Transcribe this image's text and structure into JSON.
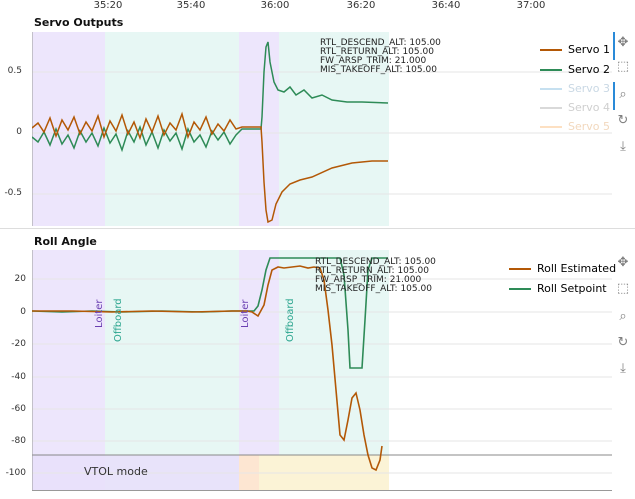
{
  "top_axis": {
    "ticks": [
      "35:20",
      "35:40",
      "36:00",
      "36:20",
      "36:40",
      "37:00"
    ]
  },
  "panel1": {
    "title": "Servo Outputs",
    "yticks": [
      "0.5",
      "0",
      "-0.5"
    ],
    "annotations": [
      "RTL_DESCEND_ALT: 105.00",
      "RTL_RETURN_ALT: 105.00",
      "FW_ARSP_TRIM: 21.000",
      "MIS_TAKEOFF_ALT: 105.00"
    ],
    "legend": [
      {
        "name": "Servo 1",
        "color": "#b35806",
        "muted": false
      },
      {
        "name": "Servo 2",
        "color": "#2e8b57",
        "muted": false
      },
      {
        "name": "Servo 3",
        "color": "#9ecae1",
        "muted": true
      },
      {
        "name": "Servo 4",
        "color": "#bdbdbd",
        "muted": true
      },
      {
        "name": "Servo 5",
        "color": "#fdd0a2",
        "muted": true
      }
    ]
  },
  "panel2": {
    "title": "Roll Angle",
    "yticks": [
      "20",
      "0",
      "-20",
      "-40",
      "-60",
      "-80",
      "-100"
    ],
    "annotations": [
      "RTL_DESCEND_ALT: 105.00",
      "RTL_RETURN_ALT: 105.00",
      "FW_ARSP_TRIM: 21.000",
      "MIS_TAKEOFF_ALT: 105.00"
    ],
    "mode_labels": [
      "Loiter",
      "Offboard",
      "Loiter",
      "Offboard"
    ],
    "bottom_mode": "VTOL mode",
    "legend": [
      {
        "name": "Roll Estimated",
        "color": "#b35806"
      },
      {
        "name": "Roll Setpoint",
        "color": "#2e8b57"
      }
    ]
  },
  "toolbar_icons": [
    "pan-icon",
    "box-zoom-icon",
    "wheel-zoom-icon",
    "reset-icon",
    "save-icon"
  ],
  "colors": {
    "loiter_band": "#e8e0fb",
    "offboard_band": "#e7f7f4",
    "vtol_band": "#fbf3d6"
  }
}
